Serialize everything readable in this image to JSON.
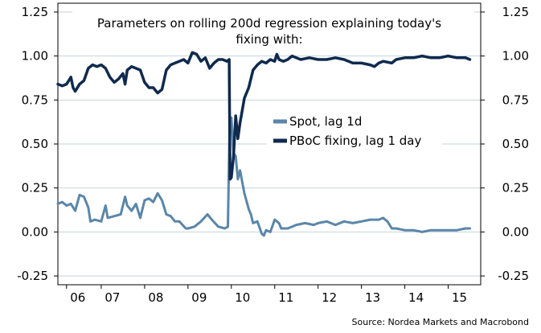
{
  "chart_data": {
    "type": "line",
    "title_lines": [
      "Parameters on rolling 200d regression explaining today's",
      "fixing with:"
    ],
    "source": "Source: Nordea Markets and Macrobond",
    "ylim": [
      -0.3,
      1.3
    ],
    "xlim": [
      2006.0,
      2015.75
    ],
    "y_ticks": [
      {
        "value": 1.25,
        "label": "1.25"
      },
      {
        "value": 1.0,
        "label": "1.00"
      },
      {
        "value": 0.75,
        "label": "0.75"
      },
      {
        "value": 0.5,
        "label": "0.50"
      },
      {
        "value": 0.25,
        "label": "0.25"
      },
      {
        "value": 0.0,
        "label": "0.00"
      },
      {
        "value": -0.25,
        "label": "-0.25"
      }
    ],
    "x_ticks": [
      {
        "value": 2006.2,
        "label": "06"
      },
      {
        "value": 2007.0,
        "label": "07"
      },
      {
        "value": 2008.0,
        "label": "08"
      },
      {
        "value": 2009.0,
        "label": "09"
      },
      {
        "value": 2010.0,
        "label": "10"
      },
      {
        "value": 2011.0,
        "label": "11"
      },
      {
        "value": 2012.0,
        "label": "12"
      },
      {
        "value": 2013.0,
        "label": "13"
      },
      {
        "value": 2014.0,
        "label": "14"
      },
      {
        "value": 2015.0,
        "label": "15"
      }
    ],
    "series": [
      {
        "name": "Spot, lag 1d",
        "color": "#5b86a8",
        "points": [
          [
            2006.0,
            0.16
          ],
          [
            2006.1,
            0.17
          ],
          [
            2006.2,
            0.15
          ],
          [
            2006.3,
            0.16
          ],
          [
            2006.4,
            0.12
          ],
          [
            2006.5,
            0.21
          ],
          [
            2006.6,
            0.2
          ],
          [
            2006.7,
            0.14
          ],
          [
            2006.75,
            0.06
          ],
          [
            2006.85,
            0.07
          ],
          [
            2007.0,
            0.06
          ],
          [
            2007.1,
            0.15
          ],
          [
            2007.15,
            0.08
          ],
          [
            2007.3,
            0.09
          ],
          [
            2007.45,
            0.1
          ],
          [
            2007.55,
            0.2
          ],
          [
            2007.6,
            0.15
          ],
          [
            2007.7,
            0.12
          ],
          [
            2007.8,
            0.16
          ],
          [
            2007.9,
            0.08
          ],
          [
            2008.0,
            0.18
          ],
          [
            2008.1,
            0.19
          ],
          [
            2008.2,
            0.17
          ],
          [
            2008.3,
            0.22
          ],
          [
            2008.4,
            0.18
          ],
          [
            2008.5,
            0.1
          ],
          [
            2008.6,
            0.09
          ],
          [
            2008.7,
            0.06
          ],
          [
            2008.8,
            0.06
          ],
          [
            2008.95,
            0.02
          ],
          [
            2009.0,
            0.02
          ],
          [
            2009.15,
            0.03
          ],
          [
            2009.3,
            0.06
          ],
          [
            2009.45,
            0.1
          ],
          [
            2009.55,
            0.07
          ],
          [
            2009.7,
            0.03
          ],
          [
            2009.85,
            0.02
          ],
          [
            2009.92,
            0.03
          ],
          [
            2009.96,
            0.6
          ],
          [
            2010.0,
            0.65
          ],
          [
            2010.05,
            0.45
          ],
          [
            2010.1,
            0.43
          ],
          [
            2010.15,
            0.3
          ],
          [
            2010.2,
            0.35
          ],
          [
            2010.3,
            0.22
          ],
          [
            2010.4,
            0.13
          ],
          [
            2010.45,
            0.1
          ],
          [
            2010.5,
            0.05
          ],
          [
            2010.6,
            0.06
          ],
          [
            2010.7,
            -0.01
          ],
          [
            2010.75,
            -0.02
          ],
          [
            2010.8,
            0.01
          ],
          [
            2010.9,
            0.0
          ],
          [
            2011.0,
            0.07
          ],
          [
            2011.1,
            0.05
          ],
          [
            2011.15,
            0.02
          ],
          [
            2011.3,
            0.02
          ],
          [
            2011.5,
            0.04
          ],
          [
            2011.7,
            0.05
          ],
          [
            2011.9,
            0.04
          ],
          [
            2012.0,
            0.05
          ],
          [
            2012.2,
            0.06
          ],
          [
            2012.4,
            0.04
          ],
          [
            2012.6,
            0.06
          ],
          [
            2012.8,
            0.05
          ],
          [
            2013.0,
            0.06
          ],
          [
            2013.2,
            0.07
          ],
          [
            2013.4,
            0.07
          ],
          [
            2013.5,
            0.08
          ],
          [
            2013.6,
            0.06
          ],
          [
            2013.7,
            0.02
          ],
          [
            2013.8,
            0.02
          ],
          [
            2014.0,
            0.01
          ],
          [
            2014.2,
            0.01
          ],
          [
            2014.4,
            0.0
          ],
          [
            2014.6,
            0.01
          ],
          [
            2014.8,
            0.01
          ],
          [
            2015.0,
            0.01
          ],
          [
            2015.2,
            0.01
          ],
          [
            2015.4,
            0.02
          ],
          [
            2015.5,
            0.02
          ]
        ]
      },
      {
        "name": "PBoC fixing, lag 1 day",
        "color": "#0f2a4e",
        "points": [
          [
            2006.0,
            0.84
          ],
          [
            2006.1,
            0.83
          ],
          [
            2006.2,
            0.84
          ],
          [
            2006.25,
            0.86
          ],
          [
            2006.3,
            0.88
          ],
          [
            2006.35,
            0.82
          ],
          [
            2006.4,
            0.8
          ],
          [
            2006.5,
            0.84
          ],
          [
            2006.6,
            0.86
          ],
          [
            2006.7,
            0.93
          ],
          [
            2006.8,
            0.95
          ],
          [
            2006.9,
            0.94
          ],
          [
            2007.0,
            0.95
          ],
          [
            2007.1,
            0.93
          ],
          [
            2007.2,
            0.88
          ],
          [
            2007.3,
            0.85
          ],
          [
            2007.4,
            0.87
          ],
          [
            2007.5,
            0.9
          ],
          [
            2007.55,
            0.84
          ],
          [
            2007.6,
            0.92
          ],
          [
            2007.7,
            0.94
          ],
          [
            2007.8,
            0.93
          ],
          [
            2007.9,
            0.92
          ],
          [
            2008.0,
            0.85
          ],
          [
            2008.1,
            0.82
          ],
          [
            2008.2,
            0.82
          ],
          [
            2008.3,
            0.79
          ],
          [
            2008.4,
            0.81
          ],
          [
            2008.5,
            0.92
          ],
          [
            2008.6,
            0.95
          ],
          [
            2008.7,
            0.96
          ],
          [
            2008.8,
            0.97
          ],
          [
            2008.9,
            0.98
          ],
          [
            2009.0,
            0.96
          ],
          [
            2009.1,
            1.02
          ],
          [
            2009.2,
            1.01
          ],
          [
            2009.3,
            0.97
          ],
          [
            2009.4,
            0.99
          ],
          [
            2009.5,
            0.93
          ],
          [
            2009.6,
            0.96
          ],
          [
            2009.7,
            0.98
          ],
          [
            2009.8,
            0.98
          ],
          [
            2009.9,
            0.97
          ],
          [
            2009.95,
            0.98
          ],
          [
            2009.97,
            0.3
          ],
          [
            2010.0,
            0.31
          ],
          [
            2010.05,
            0.43
          ],
          [
            2010.1,
            0.66
          ],
          [
            2010.15,
            0.53
          ],
          [
            2010.2,
            0.62
          ],
          [
            2010.3,
            0.76
          ],
          [
            2010.4,
            0.82
          ],
          [
            2010.5,
            0.92
          ],
          [
            2010.6,
            0.95
          ],
          [
            2010.7,
            0.97
          ],
          [
            2010.8,
            0.96
          ],
          [
            2010.9,
            0.98
          ],
          [
            2011.0,
            0.97
          ],
          [
            2011.05,
            1.01
          ],
          [
            2011.1,
            0.98
          ],
          [
            2011.2,
            0.97
          ],
          [
            2011.3,
            0.98
          ],
          [
            2011.4,
            1.0
          ],
          [
            2011.6,
            0.98
          ],
          [
            2011.8,
            0.99
          ],
          [
            2012.0,
            0.98
          ],
          [
            2012.2,
            0.98
          ],
          [
            2012.4,
            0.99
          ],
          [
            2012.6,
            0.98
          ],
          [
            2012.8,
            0.96
          ],
          [
            2013.0,
            0.96
          ],
          [
            2013.2,
            0.95
          ],
          [
            2013.3,
            0.94
          ],
          [
            2013.4,
            0.96
          ],
          [
            2013.5,
            0.97
          ],
          [
            2013.7,
            0.96
          ],
          [
            2013.8,
            0.98
          ],
          [
            2014.0,
            0.99
          ],
          [
            2014.2,
            0.99
          ],
          [
            2014.4,
            1.0
          ],
          [
            2014.6,
            0.99
          ],
          [
            2014.8,
            0.99
          ],
          [
            2015.0,
            1.0
          ],
          [
            2015.2,
            0.99
          ],
          [
            2015.4,
            0.99
          ],
          [
            2015.5,
            0.98
          ]
        ]
      }
    ]
  }
}
